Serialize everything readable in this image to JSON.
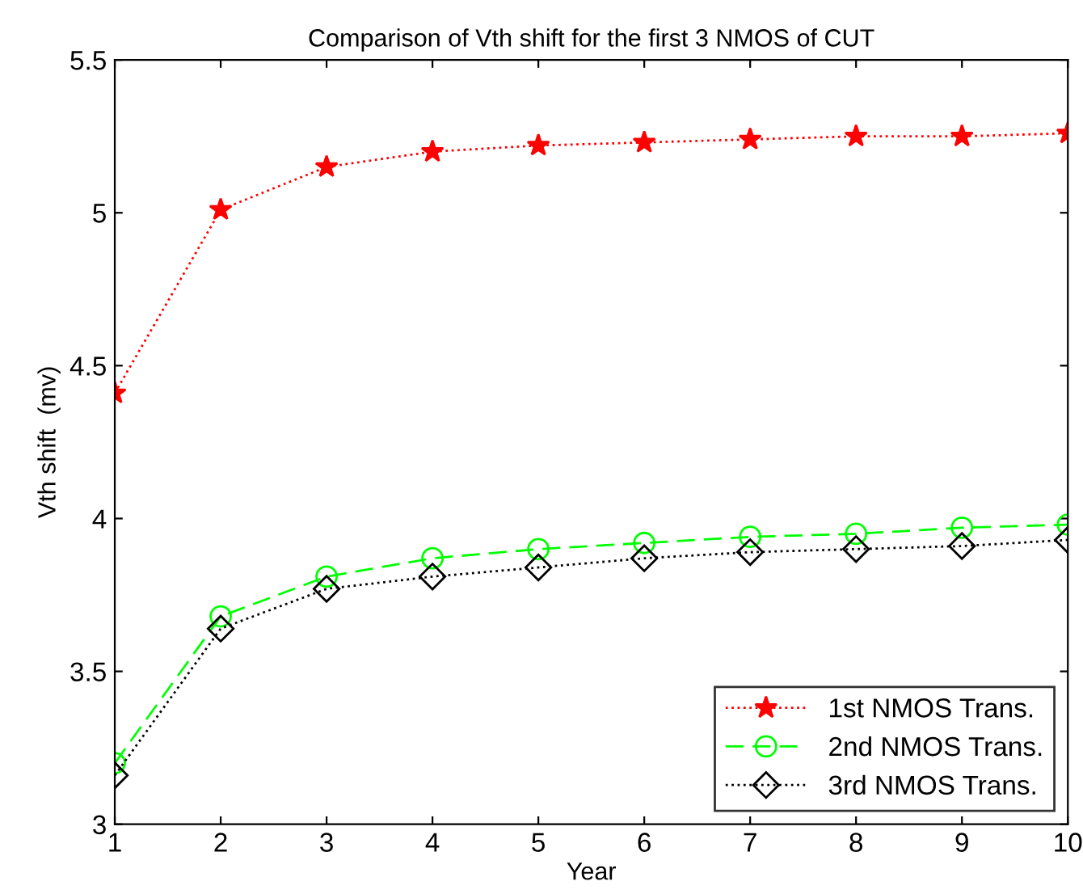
{
  "chart_data": {
    "type": "line",
    "title": "Comparison of Vth shift for the first 3 NMOS of CUT",
    "xlabel": "Year",
    "ylabel": "Vth shift  (mv)",
    "x": [
      1,
      2,
      3,
      4,
      5,
      6,
      7,
      8,
      9,
      10
    ],
    "series": [
      {
        "name": "1st NMOS Trans.",
        "color": "#ff0000",
        "marker": "star",
        "line_style": "dotted",
        "values": [
          4.41,
          5.01,
          5.15,
          5.2,
          5.22,
          5.23,
          5.24,
          5.25,
          5.25,
          5.26
        ]
      },
      {
        "name": "2nd NMOS Trans.",
        "color": "#00ff00",
        "marker": "circle",
        "line_style": "dashed",
        "values": [
          3.2,
          3.68,
          3.81,
          3.87,
          3.9,
          3.92,
          3.94,
          3.95,
          3.97,
          3.98
        ]
      },
      {
        "name": "3rd NMOS Trans.",
        "color": "#000000",
        "marker": "diamond",
        "line_style": "dotted",
        "values": [
          3.16,
          3.64,
          3.77,
          3.81,
          3.84,
          3.87,
          3.89,
          3.9,
          3.91,
          3.93
        ]
      }
    ],
    "xlim": [
      1,
      10
    ],
    "xticks": [
      1,
      2,
      3,
      4,
      5,
      6,
      7,
      8,
      9,
      10
    ],
    "ylim": [
      3,
      5.5
    ],
    "yticks": [
      3,
      3.5,
      4,
      4.5,
      5,
      5.5
    ],
    "grid": false,
    "legend": "bottom right"
  }
}
